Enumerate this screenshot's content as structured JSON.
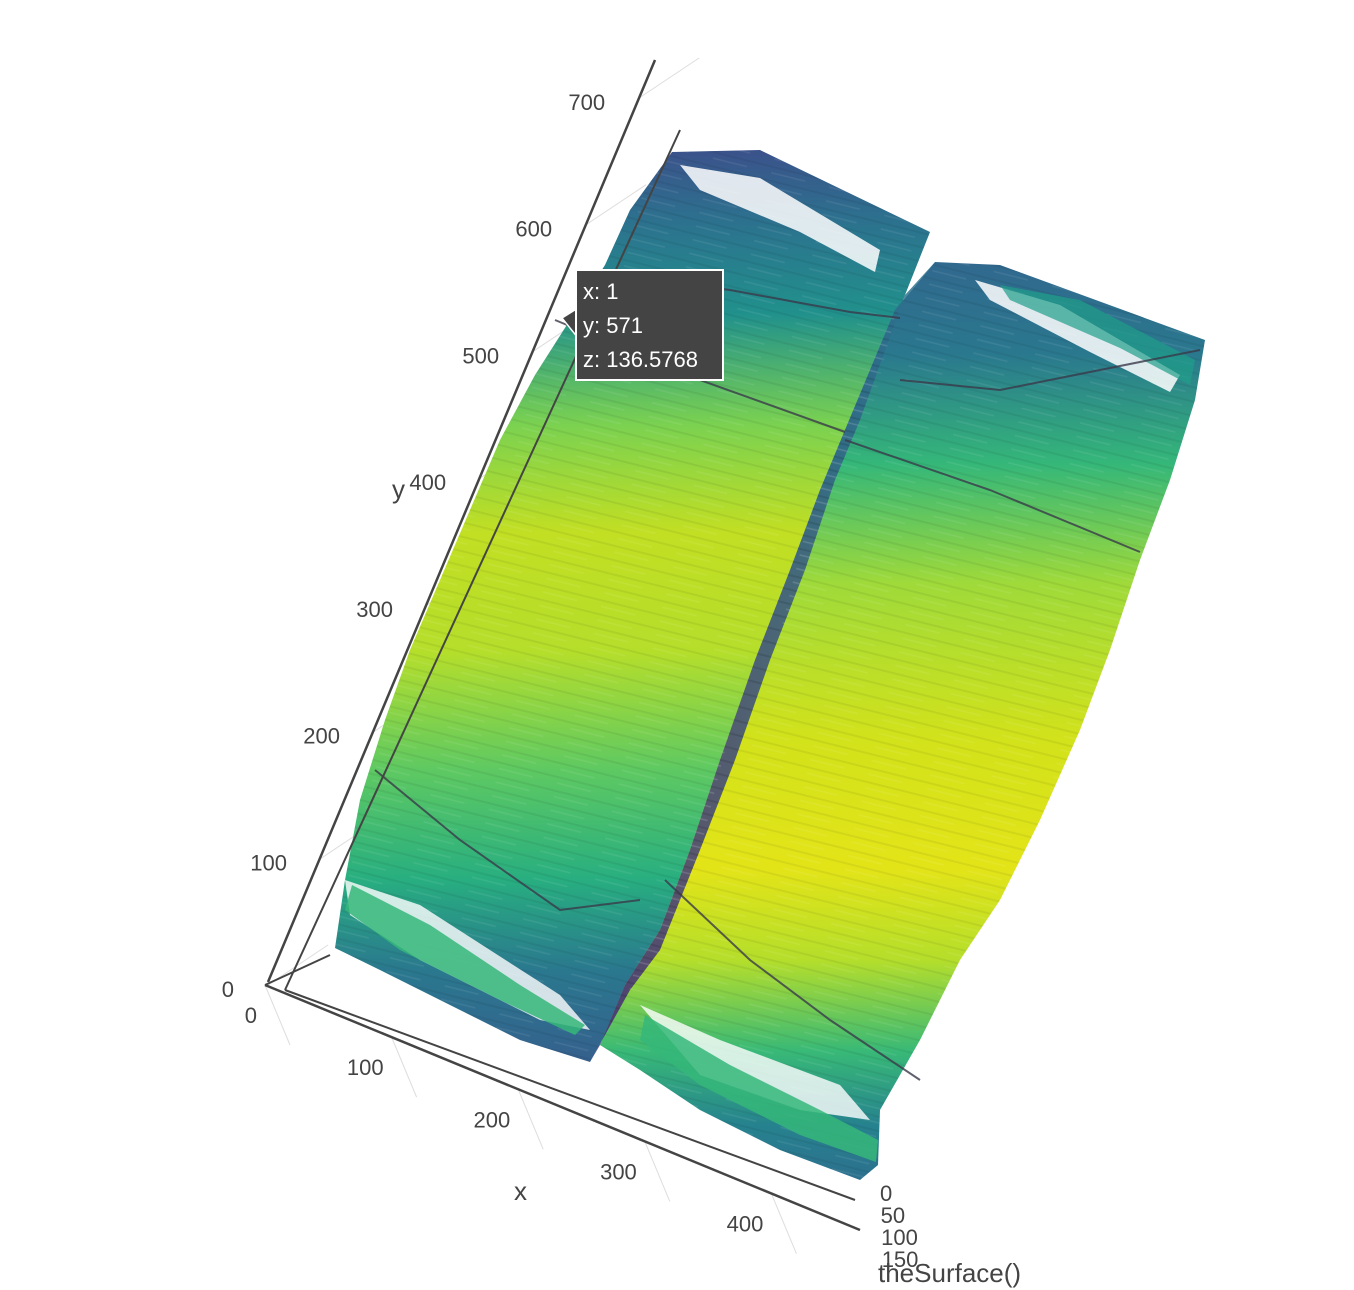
{
  "chart_data": {
    "type": "surface",
    "xlabel": "x",
    "ylabel": "y",
    "zlabel": "theSurface()",
    "x_ticks": [
      "0",
      "100",
      "200",
      "300",
      "400"
    ],
    "y_ticks": [
      "0",
      "100",
      "200",
      "300",
      "400",
      "500",
      "600",
      "700"
    ],
    "z_ticks": [
      "0",
      "50",
      "100",
      "150"
    ],
    "xlim": [
      0,
      470
    ],
    "ylim": [
      0,
      730
    ],
    "zlim": [
      0,
      175
    ],
    "colorscale": "viridis",
    "colors": {
      "low": "#440154",
      "mid_low": "#31688e",
      "mid": "#21918c",
      "mid_high": "#35b779",
      "high": "#b5de2b",
      "top": "#e3e418",
      "axis_line": "#444444",
      "grid": "#dddddd",
      "hover_bg": "#444444"
    },
    "hover": {
      "x": "x: 1",
      "y": "y: 571",
      "z": "z: 136.5768"
    },
    "surface_panels": [
      {
        "name": "left-panel",
        "z_profile": [
          95,
          110,
          135,
          150,
          160,
          155,
          145,
          120,
          95
        ]
      },
      {
        "name": "right-panel",
        "z_profile": [
          90,
          112,
          138,
          152,
          165,
          168,
          150,
          125,
          92
        ]
      }
    ]
  }
}
